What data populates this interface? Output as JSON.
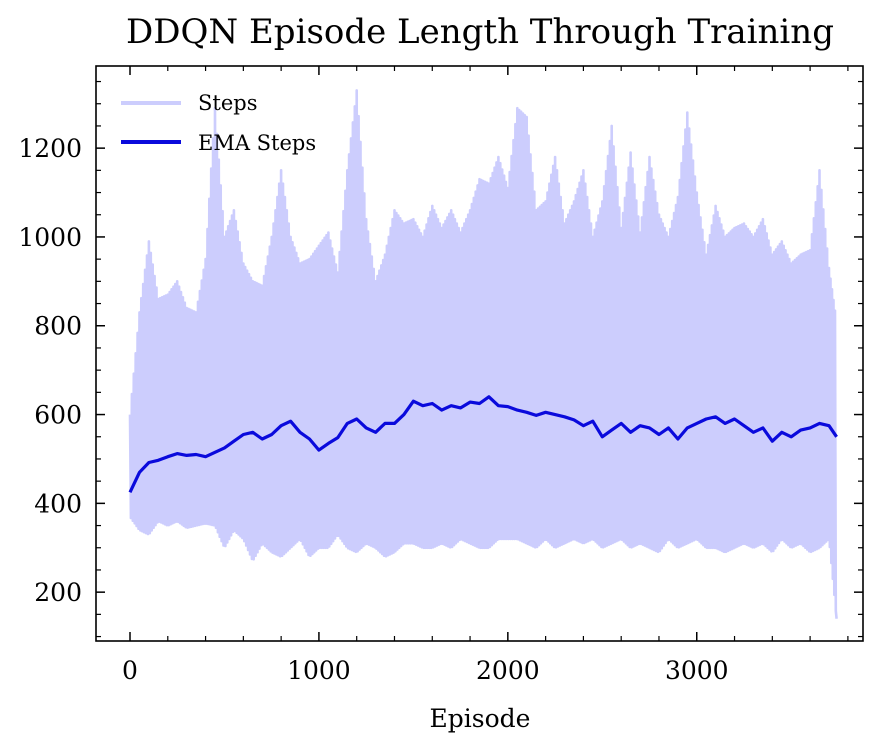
{
  "chart_data": {
    "type": "line",
    "title": "DDQN Episode Length Through Training",
    "xlabel": "Episode",
    "ylabel": "",
    "xlim": [
      -180,
      3880
    ],
    "ylim": [
      90,
      1385
    ],
    "xticks": [
      0,
      1000,
      2000,
      3000
    ],
    "yticks": [
      200,
      400,
      600,
      800,
      1000,
      1200
    ],
    "x_minor_step": 200,
    "y_minor_step": 50,
    "legend": {
      "position": "top-left",
      "entries": [
        "Steps",
        "EMA Steps"
      ]
    },
    "series": [
      {
        "name": "Steps",
        "color": "#cccdfd",
        "note_sampled": true,
        "x": [
          0,
          50,
          100,
          150,
          200,
          250,
          300,
          350,
          400,
          450,
          500,
          550,
          600,
          650,
          700,
          750,
          800,
          850,
          900,
          950,
          1000,
          1050,
          1100,
          1150,
          1200,
          1250,
          1300,
          1350,
          1400,
          1450,
          1500,
          1550,
          1600,
          1650,
          1700,
          1750,
          1800,
          1850,
          1900,
          1950,
          2000,
          2050,
          2100,
          2150,
          2200,
          2250,
          2300,
          2350,
          2400,
          2450,
          2500,
          2550,
          2600,
          2650,
          2700,
          2750,
          2800,
          2850,
          2900,
          2950,
          3000,
          3050,
          3100,
          3150,
          3200,
          3250,
          3300,
          3350,
          3400,
          3450,
          3500,
          3550,
          3600,
          3650,
          3700,
          3740
        ],
        "upper": [
          600,
          830,
          990,
          860,
          870,
          900,
          840,
          830,
          950,
          1290,
          1000,
          1060,
          940,
          900,
          890,
          1000,
          1150,
          1000,
          940,
          950,
          980,
          1010,
          920,
          1150,
          1330,
          1040,
          900,
          960,
          1060,
          1030,
          1040,
          1000,
          1070,
          1020,
          1060,
          1010,
          1060,
          1130,
          1120,
          1180,
          1110,
          1290,
          1270,
          1060,
          1080,
          1180,
          1030,
          1080,
          1150,
          1000,
          1080,
          1250,
          1020,
          1190,
          1010,
          1180,
          1050,
          1000,
          1090,
          1280,
          1100,
          960,
          1070,
          1000,
          1020,
          1030,
          1000,
          1040,
          960,
          990,
          940,
          960,
          970,
          1150,
          930,
          810
        ],
        "lower": [
          370,
          340,
          330,
          360,
          350,
          360,
          345,
          350,
          355,
          350,
          300,
          340,
          320,
          270,
          310,
          290,
          280,
          300,
          320,
          280,
          300,
          300,
          330,
          300,
          290,
          310,
          300,
          280,
          290,
          310,
          310,
          300,
          300,
          310,
          300,
          320,
          310,
          300,
          300,
          320,
          320,
          320,
          310,
          300,
          320,
          300,
          310,
          320,
          310,
          320,
          300,
          310,
          320,
          300,
          310,
          300,
          290,
          320,
          300,
          310,
          320,
          300,
          300,
          290,
          300,
          310,
          300,
          310,
          290,
          320,
          300,
          310,
          290,
          300,
          320,
          140
        ]
      },
      {
        "name": "EMA Steps",
        "color": "#0a0adc",
        "x": [
          0,
          50,
          100,
          150,
          200,
          250,
          300,
          350,
          400,
          450,
          500,
          550,
          600,
          650,
          700,
          750,
          800,
          850,
          900,
          950,
          1000,
          1050,
          1100,
          1150,
          1200,
          1250,
          1300,
          1350,
          1400,
          1450,
          1500,
          1550,
          1600,
          1650,
          1700,
          1750,
          1800,
          1850,
          1900,
          1950,
          2000,
          2050,
          2100,
          2150,
          2200,
          2250,
          2300,
          2350,
          2400,
          2450,
          2500,
          2550,
          2600,
          2650,
          2700,
          2750,
          2800,
          2850,
          2900,
          2950,
          3000,
          3050,
          3100,
          3150,
          3200,
          3250,
          3300,
          3350,
          3400,
          3450,
          3500,
          3550,
          3600,
          3650,
          3700,
          3740
        ],
        "y": [
          425,
          470,
          492,
          497,
          505,
          512,
          508,
          510,
          505,
          515,
          525,
          540,
          555,
          560,
          545,
          555,
          575,
          585,
          560,
          545,
          520,
          535,
          548,
          580,
          590,
          570,
          560,
          580,
          580,
          600,
          630,
          620,
          625,
          610,
          620,
          615,
          628,
          625,
          640,
          620,
          618,
          610,
          605,
          598,
          605,
          600,
          595,
          588,
          575,
          585,
          550,
          565,
          580,
          560,
          575,
          570,
          555,
          570,
          545,
          570,
          580,
          590,
          595,
          580,
          590,
          575,
          560,
          570,
          540,
          560,
          550,
          565,
          570,
          580,
          575,
          550
        ]
      }
    ]
  }
}
